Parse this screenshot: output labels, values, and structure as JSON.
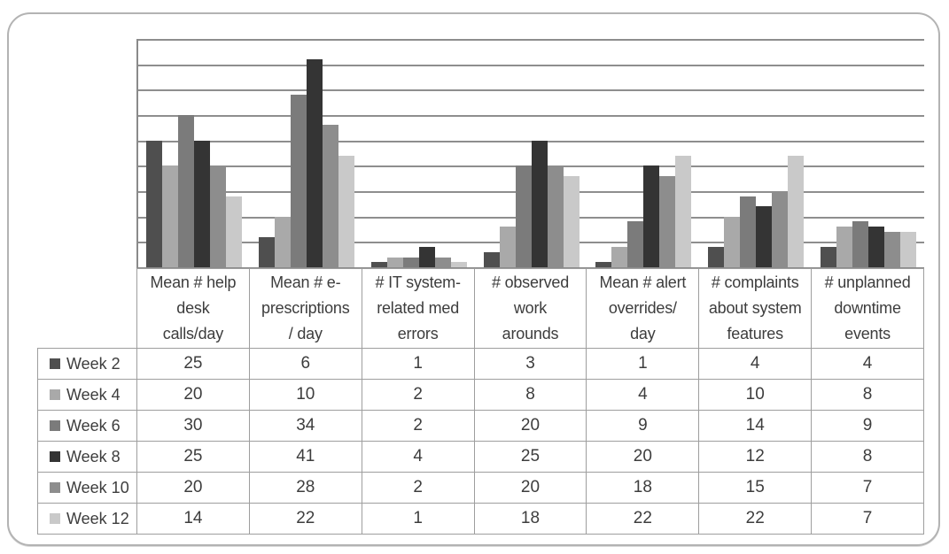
{
  "chart_data": {
    "type": "bar",
    "title": "",
    "xlabel": "",
    "ylabel": "",
    "categories": [
      "Mean #  help desk calls/day",
      "Mean # e-prescriptions / day",
      "# IT system-related med errors",
      "# observed work arounds",
      "Mean # alert overrides/ day",
      "# complaints about system features",
      "# unplanned downtime events"
    ],
    "series": [
      {
        "name": "Week 2",
        "color": "#4f4f4f",
        "values": [
          25,
          6,
          1,
          3,
          1,
          4,
          4
        ]
      },
      {
        "name": "Week 4",
        "color": "#a9a9a9",
        "values": [
          20,
          10,
          2,
          8,
          4,
          10,
          8
        ]
      },
      {
        "name": "Week 6",
        "color": "#7b7b7b",
        "values": [
          30,
          34,
          2,
          20,
          9,
          14,
          9
        ]
      },
      {
        "name": "Week 8",
        "color": "#343434",
        "values": [
          25,
          41,
          4,
          25,
          20,
          12,
          8
        ]
      },
      {
        "name": "Week 10",
        "color": "#8d8d8d",
        "values": [
          20,
          28,
          2,
          20,
          18,
          15,
          7
        ]
      },
      {
        "name": "Week 12",
        "color": "#c9c9c9",
        "values": [
          14,
          22,
          1,
          18,
          22,
          22,
          7
        ]
      }
    ],
    "ylim": [
      0,
      45
    ],
    "grid_step": 5,
    "grid": true,
    "y_tick_labels_visible": false,
    "legend_position": "table-row-labels"
  },
  "table": {
    "header_lines": [
      [
        "Mean #  help",
        "desk",
        "calls/day"
      ],
      [
        "Mean # e-",
        "prescriptions",
        "/ day"
      ],
      [
        "# IT system-",
        "related med",
        "errors"
      ],
      [
        "# observed",
        "work",
        "arounds"
      ],
      [
        "Mean # alert",
        "overrides/",
        "day"
      ],
      [
        "# complaints",
        "about system",
        "features"
      ],
      [
        "# unplanned",
        "downtime",
        "events"
      ]
    ]
  },
  "style": {
    "frame_border": "#b3b3b3",
    "gridline_color": "#8e8e8e",
    "axis_color": "#8a8a8a",
    "table_border": "#9e9e9e",
    "text_color": "#3d3d3d",
    "background": "#ffffff"
  }
}
